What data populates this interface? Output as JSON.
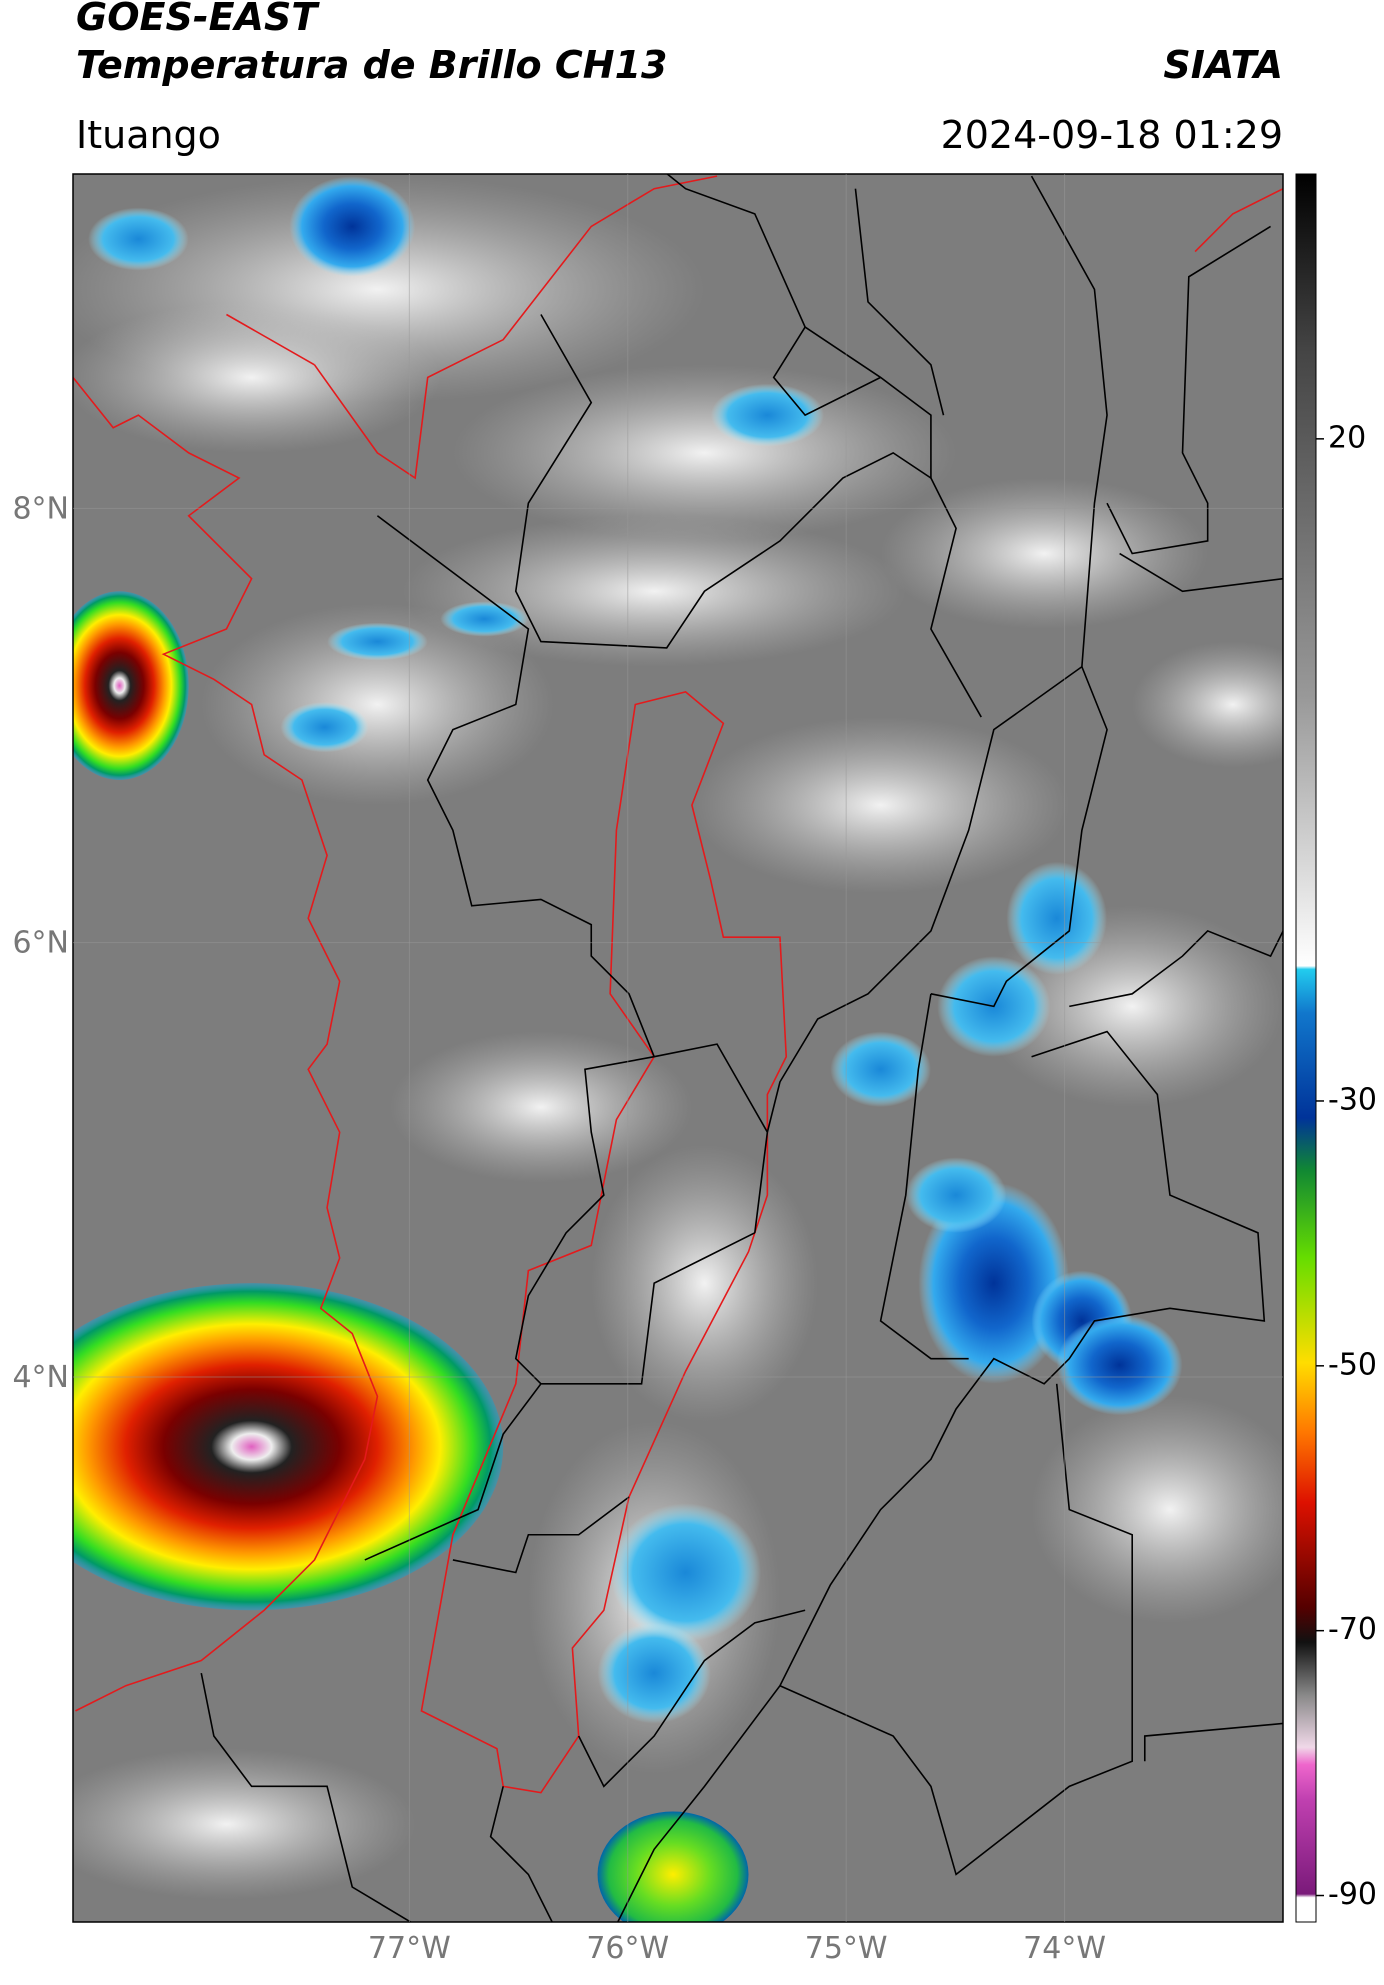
{
  "header": {
    "title": "GOES-EAST",
    "subtitle": "Temperatura de Brillo CH13",
    "source": "SIATA",
    "location": "Ituango",
    "datetime": "2024-09-18 01:29"
  },
  "map": {
    "lon_range": [
      -78.54,
      -73.0
    ],
    "lat_range": [
      1.49,
      9.54
    ],
    "lat_ticks": [
      {
        "value": 8,
        "label": "8°N"
      },
      {
        "value": 6,
        "label": "6°N"
      },
      {
        "value": 4,
        "label": "4°N"
      }
    ],
    "lon_ticks": [
      {
        "value": -77,
        "label": "77°W"
      },
      {
        "value": -76,
        "label": "76°W"
      },
      {
        "value": -75,
        "label": "75°W"
      },
      {
        "value": -74,
        "label": "74°W"
      }
    ],
    "grid": true
  },
  "colorbar": {
    "clim": [
      -92,
      40
    ],
    "ticks": [
      20,
      -30,
      -50,
      -70,
      -90
    ]
  }
}
